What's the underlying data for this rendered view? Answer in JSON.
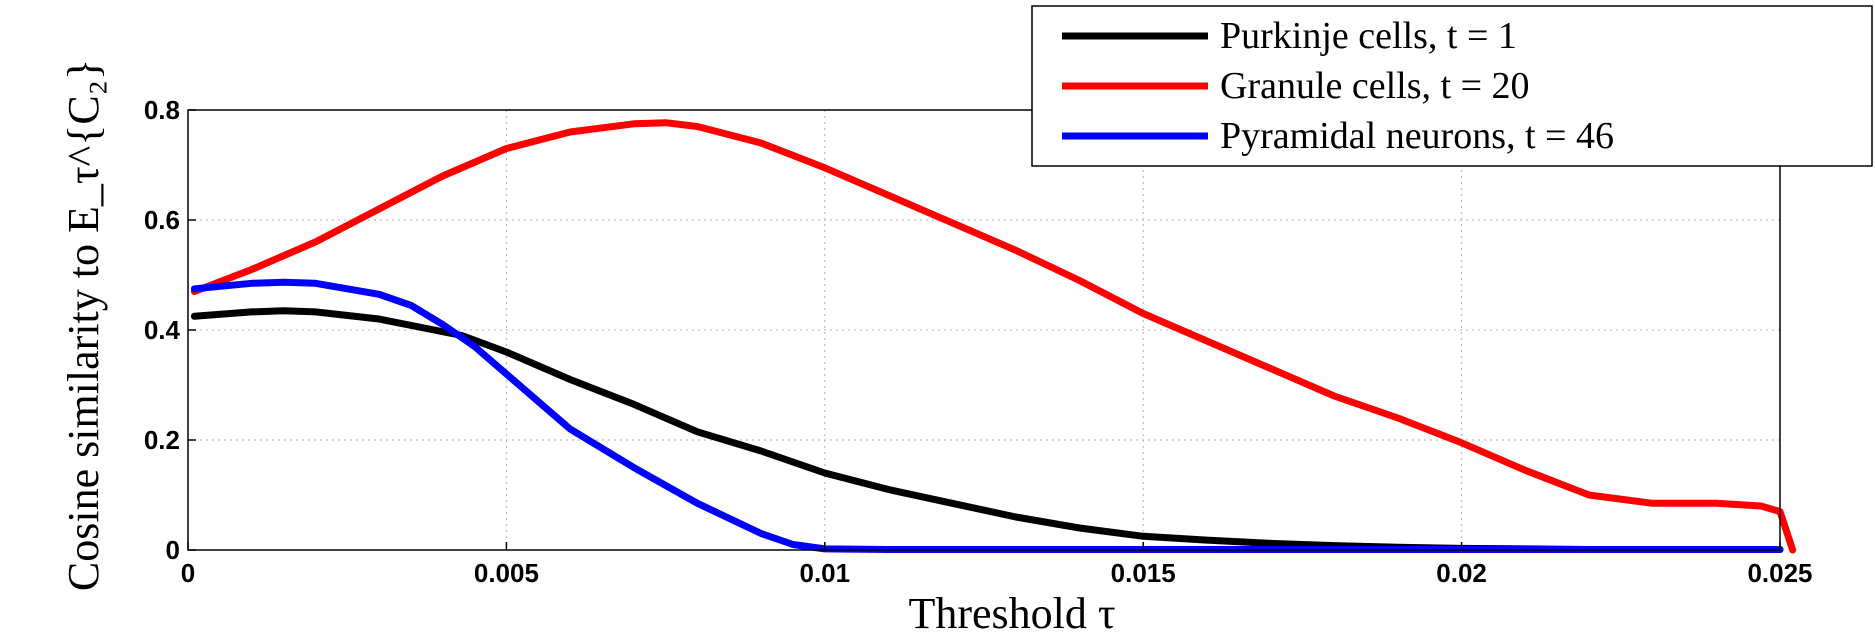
{
  "chart_data": {
    "type": "line",
    "xlabel": "Threshold τ",
    "ylabel": "Cosine similarity to E_τ^{C₂}",
    "xlim": [
      0,
      0.025
    ],
    "ylim": [
      0,
      0.8
    ],
    "x_ticks": [
      0,
      0.005,
      0.01,
      0.015,
      0.02,
      0.025
    ],
    "x_tick_labels": [
      "0",
      "0.005",
      "0.01",
      "0.015",
      "0.02",
      "0.025"
    ],
    "y_ticks": [
      0,
      0.2,
      0.4,
      0.6,
      0.8
    ],
    "y_tick_labels": [
      "0",
      "0.2",
      "0.4",
      "0.6",
      "0.8"
    ],
    "grid": true,
    "legend_position": "top-right",
    "series": [
      {
        "name": "Purkinje cells, t = 1",
        "color": "#000000",
        "points": [
          [
            0.0001,
            0.425
          ],
          [
            0.001,
            0.433
          ],
          [
            0.0015,
            0.435
          ],
          [
            0.002,
            0.433
          ],
          [
            0.003,
            0.42
          ],
          [
            0.0043,
            0.39
          ],
          [
            0.005,
            0.36
          ],
          [
            0.006,
            0.31
          ],
          [
            0.007,
            0.265
          ],
          [
            0.008,
            0.215
          ],
          [
            0.009,
            0.18
          ],
          [
            0.01,
            0.14
          ],
          [
            0.011,
            0.11
          ],
          [
            0.012,
            0.085
          ],
          [
            0.013,
            0.06
          ],
          [
            0.014,
            0.04
          ],
          [
            0.015,
            0.025
          ],
          [
            0.016,
            0.018
          ],
          [
            0.017,
            0.012
          ],
          [
            0.018,
            0.008
          ],
          [
            0.019,
            0.005
          ],
          [
            0.02,
            0.003
          ],
          [
            0.021,
            0.002
          ],
          [
            0.022,
            0.001
          ],
          [
            0.025,
            0.001
          ]
        ]
      },
      {
        "name": "Granule cells, t = 20",
        "color": "#ff0000",
        "points": [
          [
            0.0001,
            0.47
          ],
          [
            0.001,
            0.51
          ],
          [
            0.002,
            0.56
          ],
          [
            0.003,
            0.62
          ],
          [
            0.004,
            0.68
          ],
          [
            0.005,
            0.73
          ],
          [
            0.006,
            0.76
          ],
          [
            0.007,
            0.775
          ],
          [
            0.0075,
            0.777
          ],
          [
            0.008,
            0.77
          ],
          [
            0.009,
            0.74
          ],
          [
            0.01,
            0.695
          ],
          [
            0.011,
            0.645
          ],
          [
            0.012,
            0.595
          ],
          [
            0.013,
            0.545
          ],
          [
            0.014,
            0.49
          ],
          [
            0.015,
            0.43
          ],
          [
            0.016,
            0.38
          ],
          [
            0.017,
            0.33
          ],
          [
            0.018,
            0.28
          ],
          [
            0.019,
            0.24
          ],
          [
            0.02,
            0.195
          ],
          [
            0.021,
            0.145
          ],
          [
            0.022,
            0.1
          ],
          [
            0.023,
            0.085
          ],
          [
            0.024,
            0.085
          ],
          [
            0.0247,
            0.08
          ],
          [
            0.025,
            0.07
          ],
          [
            0.0252,
            0.0
          ]
        ]
      },
      {
        "name": "Pyramidal neurons, t = 46",
        "color": "#0000ff",
        "points": [
          [
            0.0001,
            0.475
          ],
          [
            0.001,
            0.485
          ],
          [
            0.0015,
            0.487
          ],
          [
            0.002,
            0.485
          ],
          [
            0.003,
            0.465
          ],
          [
            0.0035,
            0.445
          ],
          [
            0.004,
            0.41
          ],
          [
            0.0045,
            0.37
          ],
          [
            0.005,
            0.32
          ],
          [
            0.006,
            0.22
          ],
          [
            0.007,
            0.15
          ],
          [
            0.008,
            0.085
          ],
          [
            0.009,
            0.03
          ],
          [
            0.0095,
            0.01
          ],
          [
            0.01,
            0.002
          ],
          [
            0.011,
            0.001
          ],
          [
            0.025,
            0.001
          ]
        ]
      }
    ]
  }
}
